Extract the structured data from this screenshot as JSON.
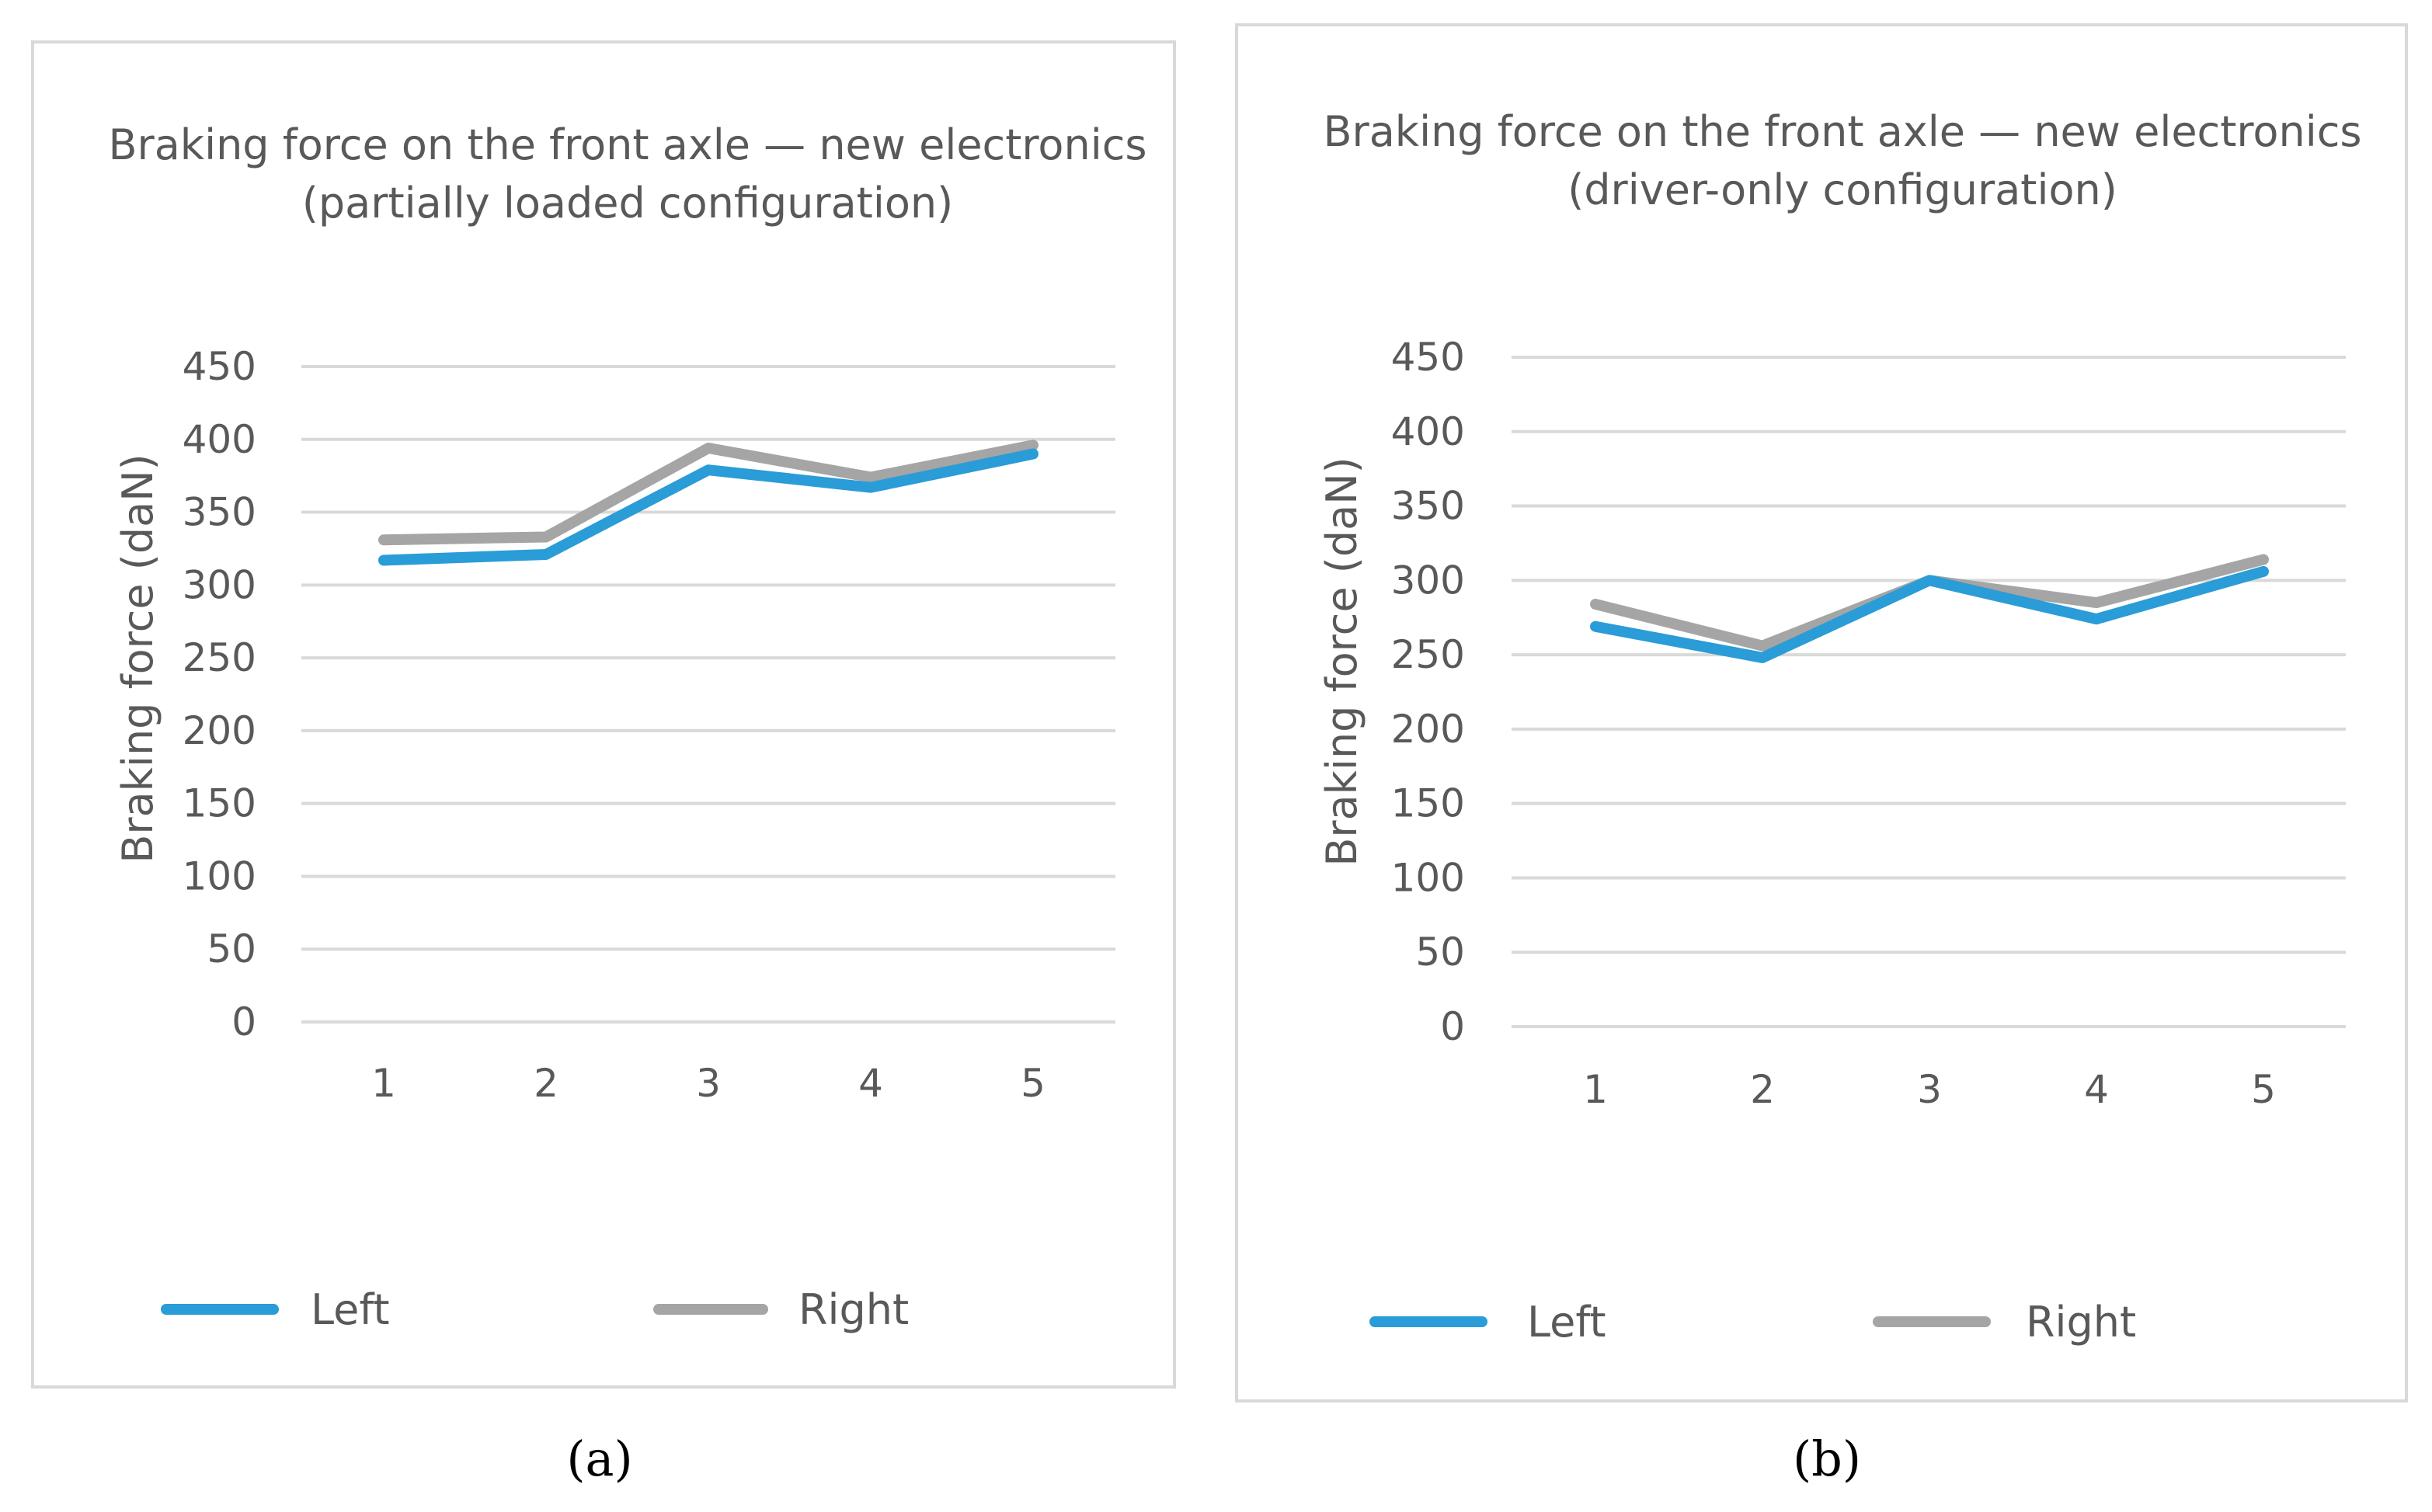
{
  "colors": {
    "left": "#2a9cd7",
    "right": "#a5a5a5"
  },
  "chart_data": [
    {
      "type": "line",
      "title": [
        "Braking force on the front axle — new electronics",
        "(partially loaded configuration)"
      ],
      "ylabel": "Braking force (daN)",
      "xlabel": "",
      "categories": [
        "1",
        "2",
        "3",
        "4",
        "5"
      ],
      "yticks": [
        "0",
        "50",
        "100",
        "150",
        "200",
        "250",
        "300",
        "350",
        "400",
        "450"
      ],
      "ylim": [
        0,
        450
      ],
      "grid": true,
      "legend_position": "bottom",
      "series": [
        {
          "name": "Left",
          "values": [
            317,
            321,
            379,
            367,
            390
          ]
        },
        {
          "name": "Right",
          "values": [
            331,
            333,
            394,
            374,
            396
          ]
        }
      ],
      "caption": "(a)"
    },
    {
      "type": "line",
      "title": [
        "Braking force on the front axle — new electronics",
        "(driver-only configuration)"
      ],
      "ylabel": "Braking force (daN)",
      "xlabel": "",
      "categories": [
        "1",
        "2",
        "3",
        "4",
        "5"
      ],
      "yticks": [
        "0",
        "50",
        "100",
        "150",
        "200",
        "250",
        "300",
        "350",
        "400",
        "450"
      ],
      "ylim": [
        0,
        450
      ],
      "grid": true,
      "legend_position": "bottom",
      "series": [
        {
          "name": "Left",
          "values": [
            269,
            248,
            300,
            274,
            306
          ]
        },
        {
          "name": "Right",
          "values": [
            284,
            256,
            300,
            285,
            314
          ]
        }
      ],
      "caption": "(b)"
    }
  ]
}
